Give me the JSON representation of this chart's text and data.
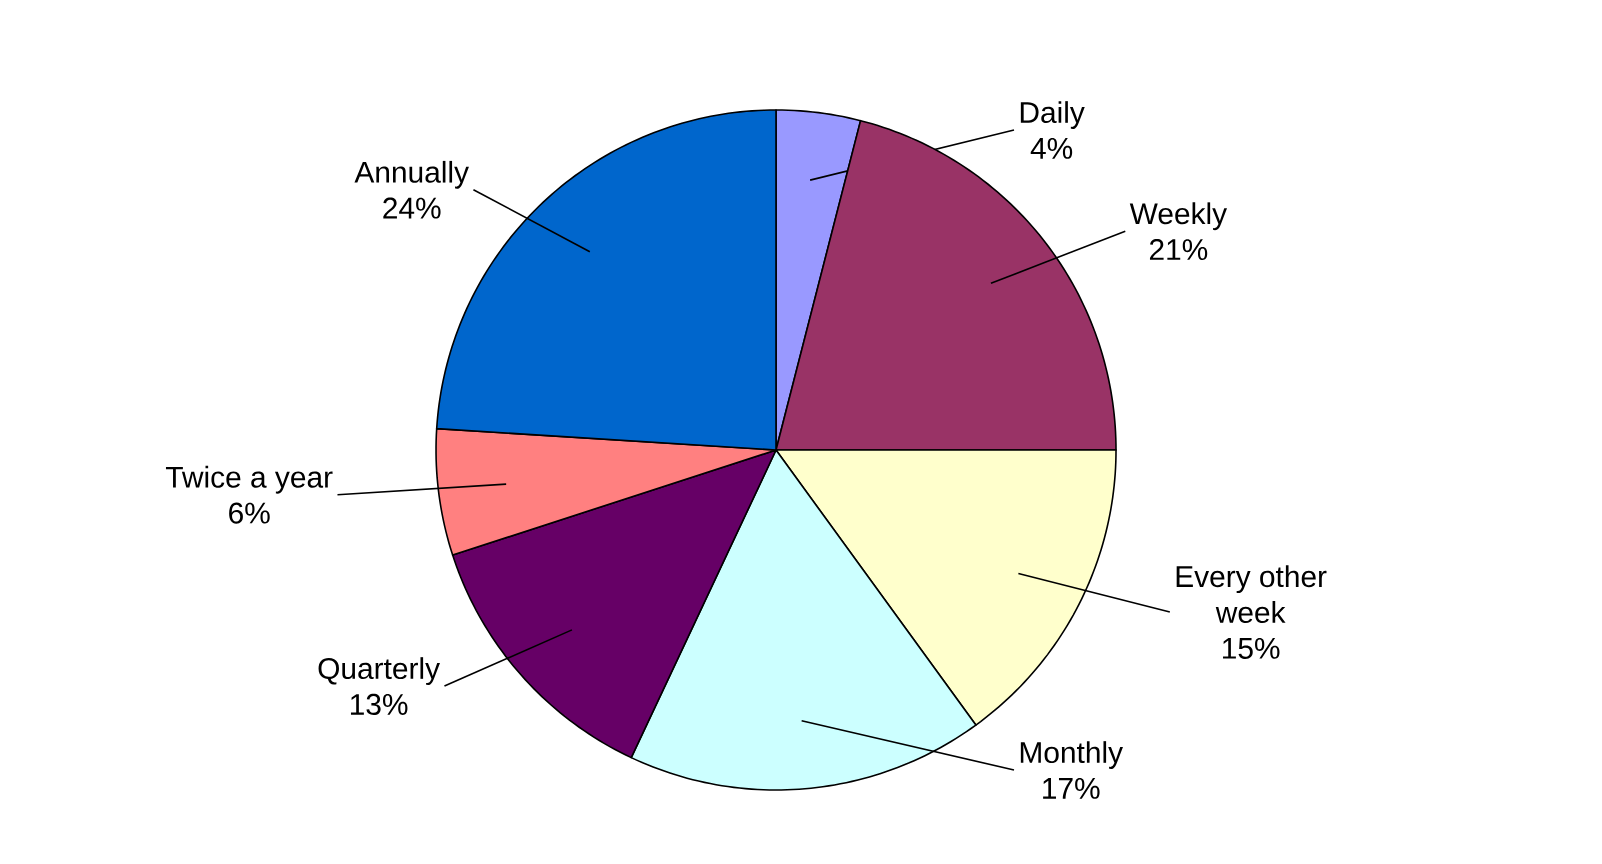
{
  "chart_data": {
    "type": "pie",
    "categories": [
      "Daily",
      "Weekly",
      "Every other week",
      "Monthly",
      "Quarterly",
      "Twice a year",
      "Annually"
    ],
    "values": [
      4,
      21,
      15,
      17,
      13,
      6,
      24
    ],
    "value_labels": [
      "4%",
      "21%",
      "15%",
      "17%",
      "13%",
      "6%",
      "24%"
    ],
    "colors": [
      "#9999ff",
      "#993366",
      "#ffffcc",
      "#ccffff",
      "#660066",
      "#ff8080",
      "#0066cc"
    ]
  }
}
